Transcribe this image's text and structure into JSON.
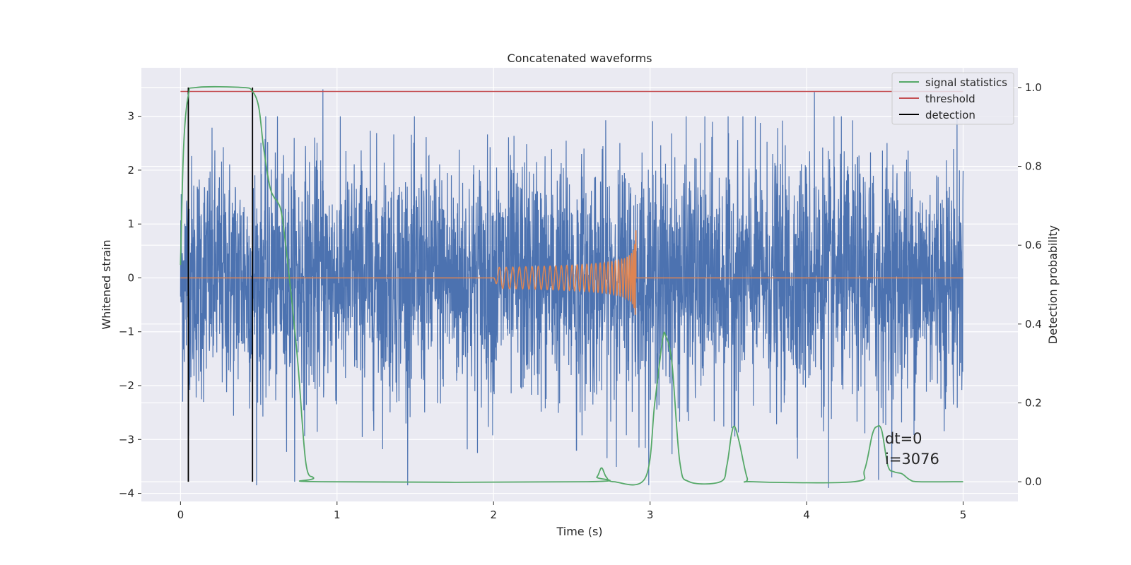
{
  "chart_data": {
    "type": "line",
    "title": "Concatenated waveforms",
    "xlabel": "Time (s)",
    "ylabel": "Whitened strain",
    "y2label": "Detection probability",
    "xlim": [
      -0.25,
      5.35
    ],
    "ylim": [
      -4.15,
      3.9
    ],
    "y2lim": [
      -0.05,
      1.05
    ],
    "x_ticks": [
      0,
      1,
      2,
      3,
      4,
      5
    ],
    "y_ticks": [
      -4,
      -3,
      -2,
      -1,
      0,
      1,
      2,
      3
    ],
    "y2_ticks": [
      0.0,
      0.2,
      0.4,
      0.6,
      0.8,
      1.0
    ],
    "grid": true,
    "legend_position": "top-right",
    "colors": {
      "background": "#eaeaf2",
      "grid": "#ffffff",
      "strain": "#4c72b0",
      "template": "#dd8452",
      "signal_statistics": "#55a868",
      "threshold": "#c44e52",
      "detection": "#000000"
    },
    "series": [
      {
        "key": "strain",
        "axis": "left",
        "x_range": [
          0,
          5
        ],
        "typical_amplitude": 1.8,
        "peak_points": [
          [
            0.91,
            3.5
          ],
          [
            4.05,
            3.45
          ],
          [
            2.53,
            -3.2
          ],
          [
            4.14,
            -3.9
          ],
          [
            4.46,
            -3.75
          ]
        ]
      },
      {
        "key": "template",
        "axis": "left",
        "x_range": [
          2.0,
          2.91
        ],
        "peak_amplitude": 0.9,
        "baseline": 0.0
      },
      {
        "name": "signal statistics",
        "axis": "right",
        "points": [
          [
            0,
            0.55
          ],
          [
            0.02,
            0.85
          ],
          [
            0.05,
            0.98
          ],
          [
            0.1,
            1.0
          ],
          [
            0.4,
            1.0
          ],
          [
            0.46,
            0.99
          ],
          [
            0.5,
            0.95
          ],
          [
            0.53,
            0.85
          ],
          [
            0.57,
            0.75
          ],
          [
            0.6,
            0.72
          ],
          [
            0.62,
            0.71
          ],
          [
            0.65,
            0.67
          ],
          [
            0.7,
            0.5
          ],
          [
            0.75,
            0.3
          ],
          [
            0.8,
            0.05
          ],
          [
            0.85,
            0.01
          ],
          [
            0.9,
            0.0
          ],
          [
            2.6,
            0.0
          ],
          [
            2.66,
            0.012
          ],
          [
            2.69,
            0.035
          ],
          [
            2.72,
            0.012
          ],
          [
            2.77,
            0.0
          ],
          [
            2.97,
            0.01
          ],
          [
            3.03,
            0.2
          ],
          [
            3.08,
            0.36
          ],
          [
            3.1,
            0.37
          ],
          [
            3.14,
            0.3
          ],
          [
            3.19,
            0.05
          ],
          [
            3.25,
            0.0
          ],
          [
            3.45,
            0.0
          ],
          [
            3.49,
            0.04
          ],
          [
            3.52,
            0.12
          ],
          [
            3.54,
            0.14
          ],
          [
            3.57,
            0.1
          ],
          [
            3.62,
            0.01
          ],
          [
            3.66,
            0.0
          ],
          [
            4.3,
            0.0
          ],
          [
            4.37,
            0.03
          ],
          [
            4.42,
            0.12
          ],
          [
            4.45,
            0.14
          ],
          [
            4.48,
            0.13
          ],
          [
            4.52,
            0.04
          ],
          [
            4.56,
            0.025
          ],
          [
            4.61,
            0.02
          ],
          [
            4.66,
            0.005
          ],
          [
            4.72,
            0.0
          ],
          [
            5.0,
            0.0
          ]
        ]
      },
      {
        "name": "threshold",
        "axis": "right",
        "y": 0.99,
        "x_range": [
          0,
          5
        ]
      },
      {
        "name": "detection",
        "axis": "right",
        "x_values": [
          0.05,
          0.46
        ],
        "y_range": [
          0.0,
          1.0
        ]
      }
    ],
    "annotations": [
      {
        "text": "dt=0"
      },
      {
        "text": "i=3076"
      }
    ]
  }
}
